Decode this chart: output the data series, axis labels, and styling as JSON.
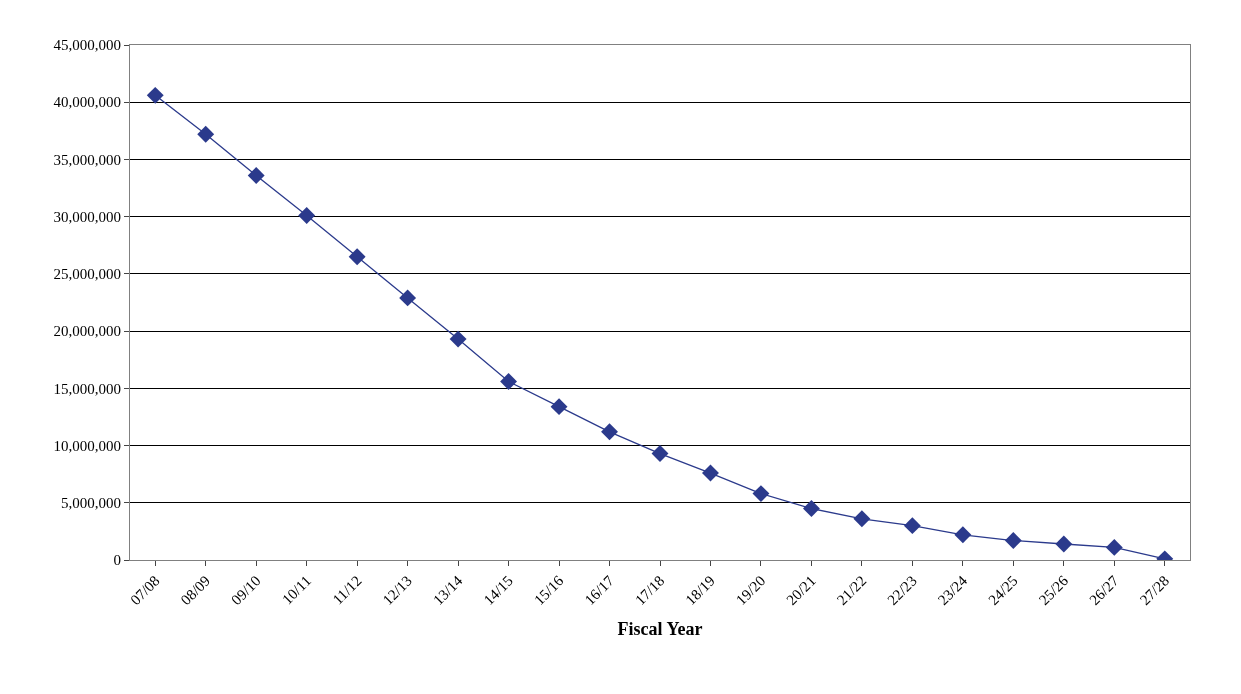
{
  "chart_data": {
    "type": "line",
    "xlabel": "Fiscal Year",
    "categories": [
      "07/08",
      "08/09",
      "09/10",
      "10/11",
      "11/12",
      "12/13",
      "13/14",
      "14/15",
      "15/16",
      "16/17",
      "17/18",
      "18/19",
      "19/20",
      "20/21",
      "21/22",
      "22/23",
      "23/24",
      "24/25",
      "25/26",
      "26/27",
      "27/28"
    ],
    "series": [
      {
        "color": "#2b3a8c",
        "values": [
          40600000,
          37200000,
          33600000,
          30100000,
          26500000,
          22900000,
          19300000,
          15600000,
          13400000,
          11200000,
          9300000,
          7600000,
          5800000,
          4500000,
          3600000,
          3000000,
          2200000,
          1700000,
          1400000,
          1100000,
          100000
        ]
      }
    ],
    "ylim": [
      0,
      45000000
    ],
    "yticks": [
      {
        "value": 0,
        "label": "0"
      },
      {
        "value": 5000000,
        "label": "5,000,000"
      },
      {
        "value": 10000000,
        "label": "10,000,000"
      },
      {
        "value": 15000000,
        "label": "15,000,000"
      },
      {
        "value": 20000000,
        "label": "20,000,000"
      },
      {
        "value": 25000000,
        "label": "25,000,000"
      },
      {
        "value": 30000000,
        "label": "30,000,000"
      },
      {
        "value": 35000000,
        "label": "35,000,000"
      },
      {
        "value": 40000000,
        "label": "40,000,000"
      },
      {
        "value": 45000000,
        "label": "45,000,000"
      }
    ],
    "grid": "y",
    "marker": "diamond",
    "line_style": "solid"
  }
}
